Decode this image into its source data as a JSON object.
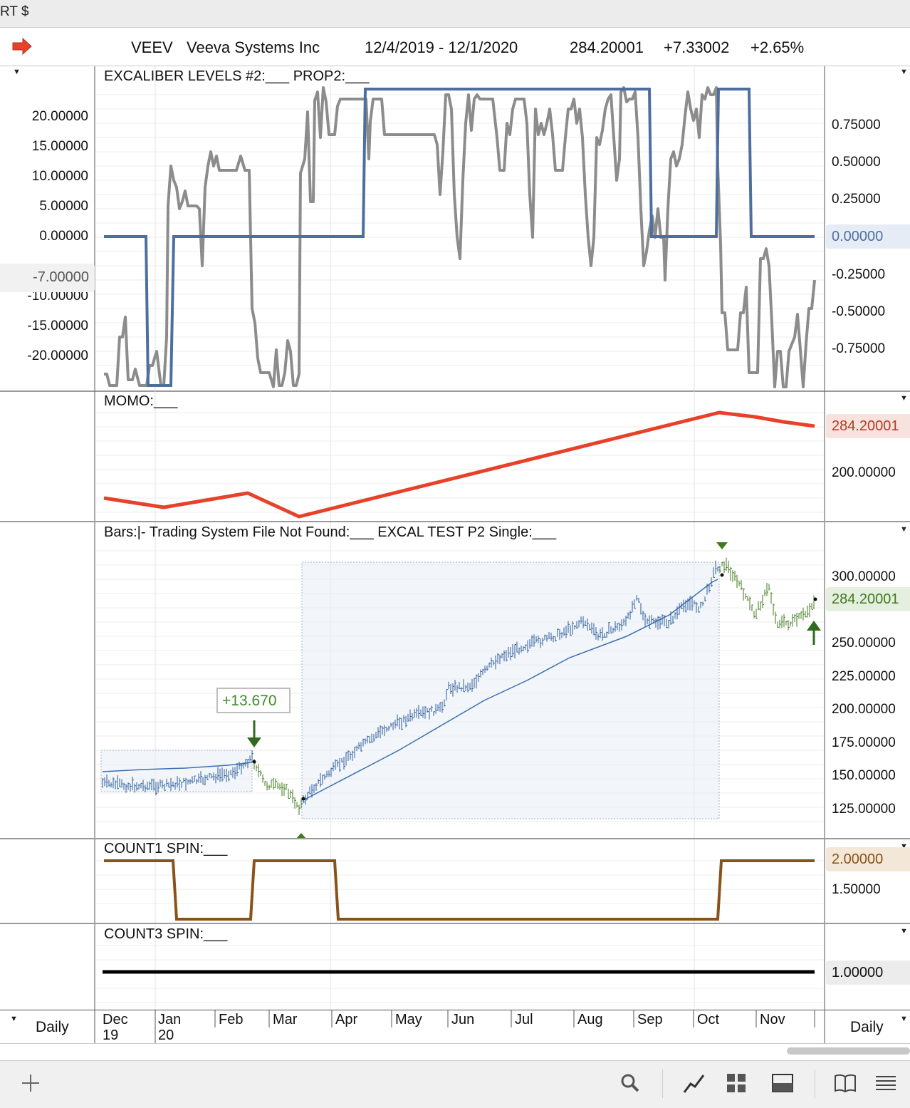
{
  "window": {
    "title_fragment": "RT $"
  },
  "header": {
    "symbol": "VEEV",
    "company": "Veeva Systems Inc",
    "date_range": "12/4/2019 - 12/1/2020",
    "last": "284.20001",
    "change": "+7.33002",
    "change_pct": "+2.65%"
  },
  "panes": {
    "excal": {
      "title": "EXCALIBER LEVELS #2:___   PROP2:___",
      "left_ticks": [
        "20.00000",
        "15.00000",
        "10.00000",
        "5.00000",
        "0.00000",
        "-10.00000",
        "-15.00000",
        "-20.00000"
      ],
      "left_badge": "-7.00000",
      "right_ticks": [
        "0.75000",
        "0.50000",
        "0.25000",
        "-0.25000",
        "-0.50000",
        "-0.75000"
      ],
      "right_badge": "0.00000"
    },
    "momo": {
      "title": "MOMO:___",
      "right_ticks": [
        "200.00000"
      ],
      "right_badge": "284.20001"
    },
    "price": {
      "title": "Bars:|-   Trading System File Not Found:___   EXCAL TEST P2 Single:___",
      "right_ticks": [
        "300.00000",
        "250.00000",
        "225.00000",
        "200.00000",
        "175.00000",
        "150.00000",
        "125.00000"
      ],
      "right_badge": "284.20001",
      "trade_label": "+13.670"
    },
    "count1": {
      "title": "COUNT1 SPIN:___",
      "right_ticks": [
        "1.50000"
      ],
      "right_badge": "2.00000"
    },
    "count3": {
      "title": "COUNT3 SPIN:___",
      "right_badge": "1.00000"
    }
  },
  "time_axis": {
    "months": [
      "Dec",
      "Jan",
      "Feb",
      "Mar",
      "Apr",
      "May",
      "Jun",
      "Jul",
      "Aug",
      "Sep",
      "Oct",
      "Nov"
    ],
    "years": [
      "19",
      "20"
    ],
    "left_period": "Daily",
    "right_period": "Daily"
  },
  "colors": {
    "excal_gray": "#8c8c8c",
    "excal_blue": "#4d6fa0",
    "momo_red": "#e8412a",
    "bars_blue": "#2c5d9c",
    "bars_green": "#3f7a1c",
    "count1_brown": "#8a5218",
    "count3_black": "#000000"
  },
  "toolbar": {
    "icons": [
      "add-icon",
      "search-icon",
      "draw-line-icon",
      "grid-layout-icon",
      "panel-layout-icon",
      "book-icon",
      "list-menu-icon"
    ]
  }
}
